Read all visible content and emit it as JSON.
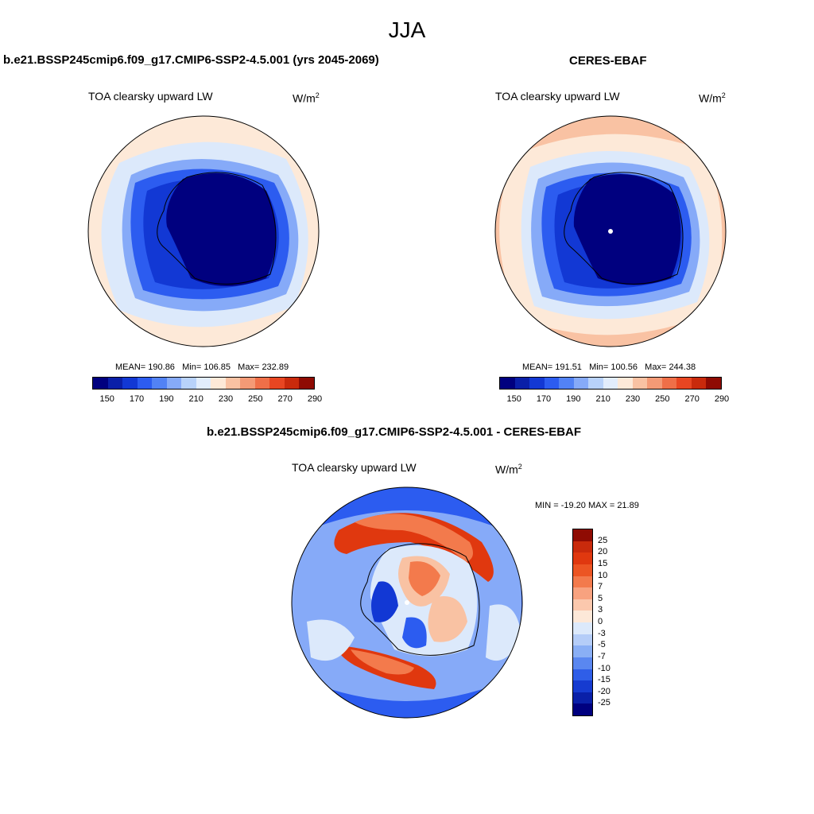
{
  "season": "JJA",
  "units_base": "W/m",
  "units_exp": "2",
  "variable": "TOA clearsky upward LW",
  "panels": [
    {
      "title": "b.e21.BSSP245cmip6.f09_g17.CMIP6-SSP2-4.5.001 (yrs 2045-2069)",
      "mean_label": "MEAN=",
      "mean": "190.86",
      "min_label": "Min=",
      "min": "106.85",
      "max_label": "Max=",
      "max": "232.89"
    },
    {
      "title": "CERES-EBAF",
      "mean_label": "MEAN=",
      "mean": "191.51",
      "min_label": "Min=",
      "min": "100.56",
      "max_label": "Max=",
      "max": "244.38"
    }
  ],
  "diff": {
    "title": "b.e21.BSSP245cmip6.f09_g17.CMIP6-SSP2-4.5.001 - CERES-EBAF",
    "minmax": "MIN = -19.20 MAX =  21.89"
  },
  "abs_colorbar": {
    "colors": [
      "#00007f",
      "#0a1fa8",
      "#1238d4",
      "#2c5cf0",
      "#5282f5",
      "#86aaf8",
      "#b8d2fa",
      "#e2edfc",
      "#fde9d8",
      "#f9c2a3",
      "#f49a76",
      "#ef6f48",
      "#e84622",
      "#c92a0c",
      "#8f0b03"
    ],
    "tick_labels": [
      "150",
      "170",
      "190",
      "210",
      "230",
      "250",
      "270",
      "290"
    ]
  },
  "diff_colorbar": {
    "colors": [
      "#8f0b03",
      "#c92a0c",
      "#e0380f",
      "#ec5523",
      "#f37a4c",
      "#f8a27f",
      "#fbc8ad",
      "#fde8d8",
      "#dce9fb",
      "#b5cdf8",
      "#8aaff5",
      "#5a87f0",
      "#2f5ee8",
      "#163bd0",
      "#0a20a8",
      "#00007f"
    ],
    "tick_labels": [
      "25",
      "20",
      "15",
      "10",
      "7",
      "5",
      "3",
      "0",
      "-3",
      "-5",
      "-7",
      "-10",
      "-15",
      "-20",
      "-25"
    ]
  },
  "map_colors": {
    "dark_blue": "#00007f",
    "mid_blue": "#1238d4",
    "blue": "#2c5cf0",
    "light_blue": "#86aaf8",
    "pale_blue": "#dce9fb",
    "peach": "#fde9d8",
    "salmon": "#f9c2a3",
    "orange": "#f37a4c",
    "red": "#e0380f"
  }
}
